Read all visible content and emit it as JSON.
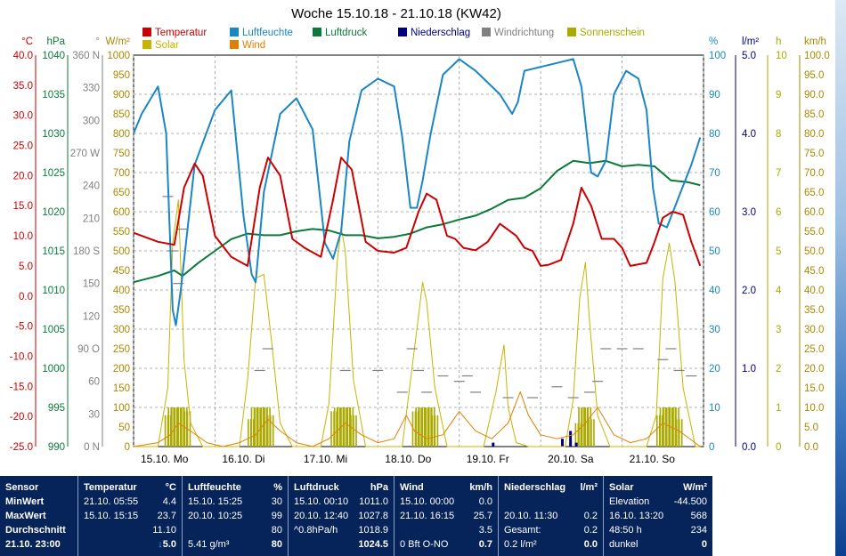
{
  "title": "Woche 15.10.18 - 21.10.18 (KW42)",
  "legend": [
    {
      "label": "Temperatur",
      "color": "#cc0000"
    },
    {
      "label": "Luftfeuchte",
      "color": "#1a86c4"
    },
    {
      "label": "Luftdruck",
      "color": "#0a7a3a"
    },
    {
      "label": "Niederschlag",
      "color": "#000080"
    },
    {
      "label": "Windrichtung",
      "color": "#808080"
    },
    {
      "label": "Sonnenschein",
      "color": "#aaaa00"
    },
    {
      "label": "Solar",
      "color": "#c8b400"
    },
    {
      "label": "Wind",
      "color": "#e08000"
    }
  ],
  "axes_left": {
    "temp": {
      "unit": "°C",
      "color": "#cc0000",
      "ticks": [
        "40.0",
        "35.0",
        "30.0",
        "25.0",
        "20.0",
        "15.0",
        "10.0",
        "5.0",
        "0.0",
        "-5.0",
        "-10.0",
        "-15.0",
        "-20.0",
        "-25.0"
      ]
    },
    "pressure": {
      "unit": "hPa",
      "color": "#0a7a3a",
      "ticks": [
        "1040",
        "1035",
        "1030",
        "1025",
        "1020",
        "1015",
        "1010",
        "1005",
        "1000",
        "995",
        "990"
      ]
    },
    "direction": {
      "unit": "°",
      "color": "#808080",
      "ticks": [
        "360 N",
        "330",
        "300",
        "270 W",
        "240",
        "210",
        "180 S",
        "150",
        "120",
        "90 O",
        "60",
        "30",
        "0 N"
      ]
    },
    "solar": {
      "unit": "W/m²",
      "color": "#aa8800",
      "ticks": [
        "1000",
        "950",
        "900",
        "850",
        "800",
        "750",
        "700",
        "650",
        "600",
        "550",
        "500",
        "450",
        "400",
        "350",
        "300",
        "250",
        "200",
        "150",
        "100",
        "50",
        "0"
      ]
    }
  },
  "axes_right": {
    "humidity": {
      "unit": "%",
      "color": "#1a86c4",
      "ticks": [
        "100",
        "90",
        "80",
        "70",
        "60",
        "50",
        "40",
        "30",
        "20",
        "10",
        "0"
      ]
    },
    "rain": {
      "unit": "l/m²",
      "color": "#000080",
      "ticks": [
        "5.0",
        "4.0",
        "3.0",
        "2.0",
        "1.0",
        "0.0"
      ]
    },
    "sunshine": {
      "unit": "h",
      "color": "#aaaa00",
      "ticks": [
        "10",
        "9",
        "8",
        "7",
        "6",
        "5",
        "4",
        "3",
        "2",
        "1",
        "0"
      ]
    },
    "wind": {
      "unit": "km/h",
      "color": "#aa8800",
      "ticks": [
        "100.0",
        "95.0",
        "90.0",
        "85.0",
        "80.0",
        "75.0",
        "70.0",
        "65.0",
        "60.0",
        "55.0",
        "50.0",
        "45.0",
        "40.0",
        "35.0",
        "30.0",
        "25.0",
        "20.0",
        "15.0",
        "10.0",
        "5.0",
        "0.0"
      ]
    }
  },
  "x_labels": [
    "15.10.  Mo",
    "16.10.  Di",
    "17.10.  Mi",
    "18.10.  Do",
    "19.10.  Fr",
    "20.10.  Sa",
    "21.10.  So"
  ],
  "chart_data": {
    "type": "line",
    "title": "Woche 15.10.18 - 21.10.18 (KW42)",
    "x_unit": "days since 15.10. 00:00",
    "x_range": [
      0,
      7
    ],
    "series": [
      {
        "name": "Temperatur",
        "unit": "°C",
        "ylim": [
          -25,
          40
        ],
        "color": "#cc0000",
        "x": [
          0,
          0.3,
          0.5,
          0.62,
          0.75,
          0.85,
          1.0,
          1.2,
          1.4,
          1.55,
          1.65,
          1.8,
          1.95,
          2.1,
          2.3,
          2.45,
          2.55,
          2.68,
          2.85,
          3.0,
          3.2,
          3.35,
          3.5,
          3.6,
          3.72,
          3.85,
          3.95,
          4.05,
          4.2,
          4.35,
          4.5,
          4.7,
          4.8,
          4.9,
          5.0,
          5.1,
          5.25,
          5.4,
          5.5,
          5.62,
          5.75,
          5.9,
          6.0,
          6.1,
          6.3,
          6.4,
          6.5,
          6.62,
          6.75,
          6.85,
          6.96
        ],
        "y": [
          10.5,
          9,
          8.5,
          18,
          22,
          20,
          10,
          6.5,
          5,
          18,
          23,
          20,
          9.5,
          8,
          6.5,
          16,
          23,
          21,
          9,
          7.5,
          7.2,
          8,
          14,
          17,
          16,
          10,
          9.5,
          8,
          7.6,
          9,
          12,
          10,
          8,
          7.5,
          5,
          5.2,
          6,
          12,
          18,
          15,
          9.5,
          9.5,
          8,
          5,
          5.5,
          9,
          13,
          14,
          13.5,
          9,
          5
        ]
      },
      {
        "name": "Luftfeuchte",
        "unit": "%",
        "ylim": [
          0,
          100
        ],
        "color": "#1a86c4",
        "x": [
          0,
          0.1,
          0.3,
          0.4,
          0.48,
          0.52,
          0.58,
          0.75,
          1.0,
          1.2,
          1.35,
          1.45,
          1.5,
          1.6,
          1.8,
          2.0,
          2.2,
          2.35,
          2.45,
          2.55,
          2.65,
          2.8,
          3.0,
          3.2,
          3.3,
          3.4,
          3.48,
          3.55,
          3.65,
          3.8,
          4.0,
          4.2,
          4.5,
          4.65,
          4.72,
          4.8,
          5.0,
          5.2,
          5.4,
          5.5,
          5.62,
          5.7,
          5.8,
          5.9,
          6.05,
          6.2,
          6.3,
          6.38,
          6.45,
          6.55,
          6.7,
          6.85,
          6.96
        ],
        "y": [
          80,
          85,
          92,
          80,
          35,
          31,
          40,
          72,
          86,
          91,
          59,
          44,
          42,
          65,
          85,
          89,
          81,
          52,
          48,
          55,
          78,
          91,
          94,
          92,
          79,
          61,
          61,
          68,
          80,
          95,
          99,
          96,
          90,
          85,
          88,
          96,
          97,
          98,
          99,
          92,
          70,
          69,
          73,
          90,
          96,
          94,
          86,
          66,
          57,
          56,
          64,
          72,
          79
        ]
      },
      {
        "name": "Luftdruck",
        "unit": "hPa",
        "ylim": [
          990,
          1040
        ],
        "color": "#0a7a3a",
        "x": [
          0,
          0.3,
          0.5,
          0.6,
          0.8,
          1.0,
          1.2,
          1.4,
          1.6,
          1.8,
          2.0,
          2.2,
          2.4,
          2.6,
          2.8,
          3.0,
          3.2,
          3.4,
          3.6,
          3.8,
          4.0,
          4.2,
          4.4,
          4.6,
          4.8,
          5.0,
          5.2,
          5.4,
          5.6,
          5.8,
          6.0,
          6.2,
          6.4,
          6.6,
          6.8,
          6.96
        ],
        "y": [
          1011,
          1011.8,
          1012.5,
          1011.8,
          1013.5,
          1015,
          1016.5,
          1017.2,
          1017,
          1017,
          1017.5,
          1017.8,
          1017.6,
          1017,
          1017,
          1016.6,
          1016.8,
          1017.2,
          1018,
          1018.4,
          1019,
          1019.5,
          1020.4,
          1021.5,
          1021.8,
          1023,
          1025.2,
          1026.5,
          1026.2,
          1026.5,
          1025.8,
          1026,
          1025.8,
          1024,
          1023.8,
          1023.4
        ]
      },
      {
        "name": "Solar",
        "unit": "W/m²",
        "ylim": [
          0,
          1000
        ],
        "color": "#c8b400",
        "x": [
          0,
          0.3,
          0.42,
          0.48,
          0.55,
          0.62,
          0.7,
          0.85,
          1.0,
          1.3,
          1.4,
          1.5,
          1.6,
          1.7,
          1.8,
          1.95,
          2.0,
          2.3,
          2.4,
          2.5,
          2.55,
          2.6,
          2.7,
          2.85,
          3.0,
          3.3,
          3.45,
          3.55,
          3.6,
          3.7,
          3.85,
          4.0,
          4.3,
          4.45,
          4.55,
          4.6,
          4.7,
          4.85,
          5.0,
          5.3,
          5.4,
          5.48,
          5.55,
          5.6,
          5.7,
          5.85,
          6.0,
          6.3,
          6.42,
          6.5,
          6.58,
          6.65,
          6.75,
          6.9,
          6.96
        ],
        "y": [
          0,
          0,
          150,
          520,
          630,
          220,
          60,
          0,
          0,
          0,
          170,
          430,
          440,
          260,
          60,
          0,
          0,
          0,
          110,
          470,
          560,
          500,
          170,
          0,
          0,
          0,
          250,
          420,
          370,
          150,
          0,
          0,
          0,
          140,
          260,
          100,
          10,
          0,
          0,
          0,
          120,
          380,
          470,
          320,
          80,
          0,
          0,
          0,
          80,
          430,
          520,
          420,
          150,
          0,
          0
        ]
      },
      {
        "name": "Wind",
        "unit": "km/h",
        "ylim": [
          0,
          100
        ],
        "color": "#e08000",
        "x": [
          0,
          0.3,
          0.45,
          0.55,
          0.7,
          0.9,
          1.1,
          1.3,
          1.5,
          1.65,
          1.8,
          2.0,
          2.2,
          2.4,
          2.6,
          2.8,
          3.0,
          3.2,
          3.35,
          3.45,
          3.6,
          3.8,
          4.0,
          4.2,
          4.4,
          4.6,
          4.75,
          4.85,
          5.0,
          5.2,
          5.4,
          5.55,
          5.7,
          5.9,
          6.1,
          6.3,
          6.5,
          6.7,
          6.96
        ],
        "y": [
          0,
          1,
          3,
          6,
          4,
          1,
          0,
          1,
          3,
          7,
          4,
          1,
          0,
          2,
          6,
          3,
          1,
          2,
          8,
          4,
          2,
          3,
          9,
          4,
          2,
          6,
          14,
          8,
          3,
          2,
          3,
          6,
          10,
          3,
          1,
          2,
          6,
          4,
          0
        ]
      },
      {
        "name": "Windrichtung",
        "unit": "°",
        "ylim": [
          0,
          360
        ],
        "color": "#808080",
        "x": [
          0.42,
          0.48,
          0.55,
          0.6,
          1.55,
          1.65,
          2.6,
          3.0,
          3.3,
          3.42,
          3.5,
          3.6,
          3.8,
          4.0,
          4.1,
          4.2,
          4.6,
          4.9,
          5.2,
          5.4,
          5.6,
          5.7,
          5.8,
          6.0,
          6.2,
          6.5,
          6.6,
          6.7,
          6.85
        ],
        "y": [
          230,
          180,
          150,
          200,
          70,
          90,
          70,
          70,
          50,
          90,
          70,
          50,
          65,
          60,
          65,
          50,
          45,
          45,
          55,
          45,
          50,
          60,
          90,
          90,
          90,
          80,
          90,
          70,
          65
        ]
      },
      {
        "name": "Sonnenschein",
        "unit": "h",
        "ylim": [
          0,
          10
        ],
        "color": "#aaaa00",
        "x": [
          0.38,
          0.42,
          0.46,
          0.5,
          0.54,
          0.58,
          0.62,
          1.4,
          1.44,
          1.48,
          1.52,
          1.56,
          1.6,
          1.64,
          2.42,
          2.46,
          2.5,
          2.54,
          2.58,
          2.62,
          2.66,
          3.42,
          3.46,
          3.5,
          3.54,
          3.58,
          3.62,
          3.66,
          5.42,
          5.46,
          5.5,
          5.54,
          5.58,
          6.42,
          6.46,
          6.5,
          6.54,
          6.58,
          6.62,
          6.66
        ],
        "y": [
          0.8,
          1,
          1,
          1,
          1,
          1,
          0.9,
          0.7,
          1,
          1,
          1,
          1,
          1,
          0.8,
          0.9,
          1,
          1,
          1,
          1,
          1,
          0.8,
          0.9,
          1,
          1,
          1,
          1,
          1,
          0.8,
          0.6,
          1,
          1,
          1,
          0.7,
          0.8,
          1,
          1,
          1,
          1,
          1,
          0.7
        ]
      },
      {
        "name": "Niederschlag",
        "unit": "l/m²",
        "ylim": [
          0,
          5
        ],
        "color": "#000080",
        "x": [
          0.3,
          1.3,
          2.3,
          3.3,
          4.4,
          5.25,
          5.35,
          5.42
        ],
        "y": [
          0,
          0,
          0,
          0,
          0.05,
          0.1,
          0.2,
          0.05
        ]
      }
    ]
  },
  "panel": {
    "sensor": {
      "h": "Sensor",
      "r1": "MinWert",
      "r2": "MaxWert",
      "r3": "Durchschnitt",
      "r4": "21.10. 23:00"
    },
    "temp": {
      "h": "Temperatur",
      "hu": "°C",
      "r1a": "21.10.  05:55",
      "r1b": "4.4",
      "r2a": "15.10.  15:15",
      "r2b": "23.7",
      "r3b": "11.10",
      "r4arrow": "↓",
      "r4b": "5.0"
    },
    "hum": {
      "h": "Luftfeuchte",
      "hu": "%",
      "r1a": "15.10.  15:25",
      "r1b": "30",
      "r2a": "20.10.  10:25",
      "r2b": "99",
      "r3b": "80",
      "r4a": "5.41 g/m³",
      "r4b": "80"
    },
    "press": {
      "h": "Luftdruck",
      "hu": "hPa",
      "r1a": "15.10.  00:10",
      "r1b": "1011.0",
      "r2a": "20.10.  12:40",
      "r2b": "1027.8",
      "r3a": "^0.8hPa/h",
      "r3b": "1018.9",
      "r4b": "1024.5"
    },
    "wind": {
      "h": "Wind",
      "hu": "km/h",
      "r1a": "15.10.  00:00",
      "r1b": "0.0",
      "r2a": "21.10.  16:15",
      "r2b": "25.7",
      "r3b": "3.5",
      "r4a": "0 Bft O-NO",
      "r4b": "0.7"
    },
    "rain": {
      "h": "Niederschlag",
      "hu": "l/m²",
      "r2a": "20.10.  11:30",
      "r2b": "0.2",
      "r3a": "Gesamt:",
      "r3b": "0.2",
      "r4a": "0.2 l/m²",
      "r4b": "0.0"
    },
    "solar": {
      "h": "Solar",
      "hu": "W/m²",
      "r1a": "Elevation",
      "r1b": "-44.500",
      "r2a": "16.10.  13:20",
      "r2b": "568",
      "r3a": "48:50 h",
      "r3b": "234",
      "r4a": "dunkel",
      "r4b": "0"
    }
  }
}
